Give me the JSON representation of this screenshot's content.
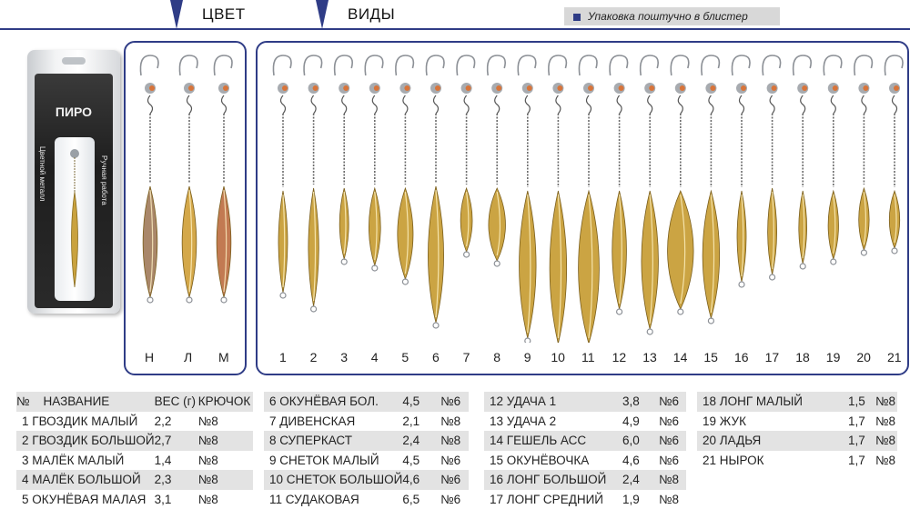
{
  "header": {
    "color_label": "ЦВЕТ",
    "types_label": "ВИДЫ",
    "pack_note": "Упаковка поштучно в блистер"
  },
  "blister": {
    "brand": "ПИРО",
    "left_text": "Цветной металл",
    "right_text": "Ручная работа"
  },
  "colors": [
    "Н",
    "Л",
    "М"
  ],
  "color_fills": [
    "#a9876a",
    "#d4a84a",
    "#c27a52"
  ],
  "types": [
    "1",
    "2",
    "3",
    "4",
    "5",
    "6",
    "7",
    "8",
    "9",
    "10",
    "11",
    "12",
    "13",
    "14",
    "15",
    "16",
    "17",
    "18",
    "19",
    "20",
    "21"
  ],
  "table": {
    "headers": [
      "№",
      "НАЗВАНИЕ",
      "ВЕС (г)",
      "КРЮЧОК"
    ],
    "col1": [
      {
        "name": "1 ГВОЗДИК МАЛЫЙ",
        "weight": "2,2",
        "hook": "№8"
      },
      {
        "name": "2 ГВОЗДИК БОЛЬШОЙ",
        "weight": "2,7",
        "hook": "№8"
      },
      {
        "name": "3 МАЛЁК МАЛЫЙ",
        "weight": "1,4",
        "hook": "№8"
      },
      {
        "name": "4 МАЛЁК БОЛЬШОЙ",
        "weight": "2,3",
        "hook": "№8"
      },
      {
        "name": "5 ОКУНЁВАЯ МАЛАЯ",
        "weight": "3,1",
        "hook": "№8"
      }
    ],
    "col2": [
      {
        "name": "6 ОКУНЁВАЯ БОЛ.",
        "weight": "4,5",
        "hook": "№6"
      },
      {
        "name": "7 ДИВЕНСКАЯ",
        "weight": "2,1",
        "hook": "№8"
      },
      {
        "name": "8 СУПЕРКАСТ",
        "weight": "2,4",
        "hook": "№8"
      },
      {
        "name": "9 СНЕТОК МАЛЫЙ",
        "weight": "4,5",
        "hook": "№6"
      },
      {
        "name": "10 СНЕТОК БОЛЬШОЙ",
        "weight": "4,6",
        "hook": "№6"
      },
      {
        "name": "11 СУДАКОВАЯ",
        "weight": "6,5",
        "hook": "№6"
      }
    ],
    "col3": [
      {
        "name": "12 УДАЧА 1",
        "weight": "3,8",
        "hook": "№6"
      },
      {
        "name": "13 УДАЧА 2",
        "weight": "4,9",
        "hook": "№6"
      },
      {
        "name": "14 ГЕШЕЛЬ АСС",
        "weight": "6,0",
        "hook": "№6"
      },
      {
        "name": "15 ОКУНЁВОЧКА",
        "weight": "4,6",
        "hook": "№6"
      },
      {
        "name": "16 ЛОНГ БОЛЬШОЙ",
        "weight": "2,4",
        "hook": "№8"
      },
      {
        "name": "17 ЛОНГ СРЕДНИЙ",
        "weight": "1,9",
        "hook": "№8"
      }
    ],
    "col4": [
      {
        "name": "18 ЛОНГ МАЛЫЙ",
        "weight": "1,5",
        "hook": "№8"
      },
      {
        "name": "19 ЖУК",
        "weight": "1,7",
        "hook": "№8"
      },
      {
        "name": "20 ЛАДЬЯ",
        "weight": "1,7",
        "hook": "№8"
      },
      {
        "name": "21 НЫРОК",
        "weight": "1,7",
        "hook": "№8"
      }
    ]
  }
}
